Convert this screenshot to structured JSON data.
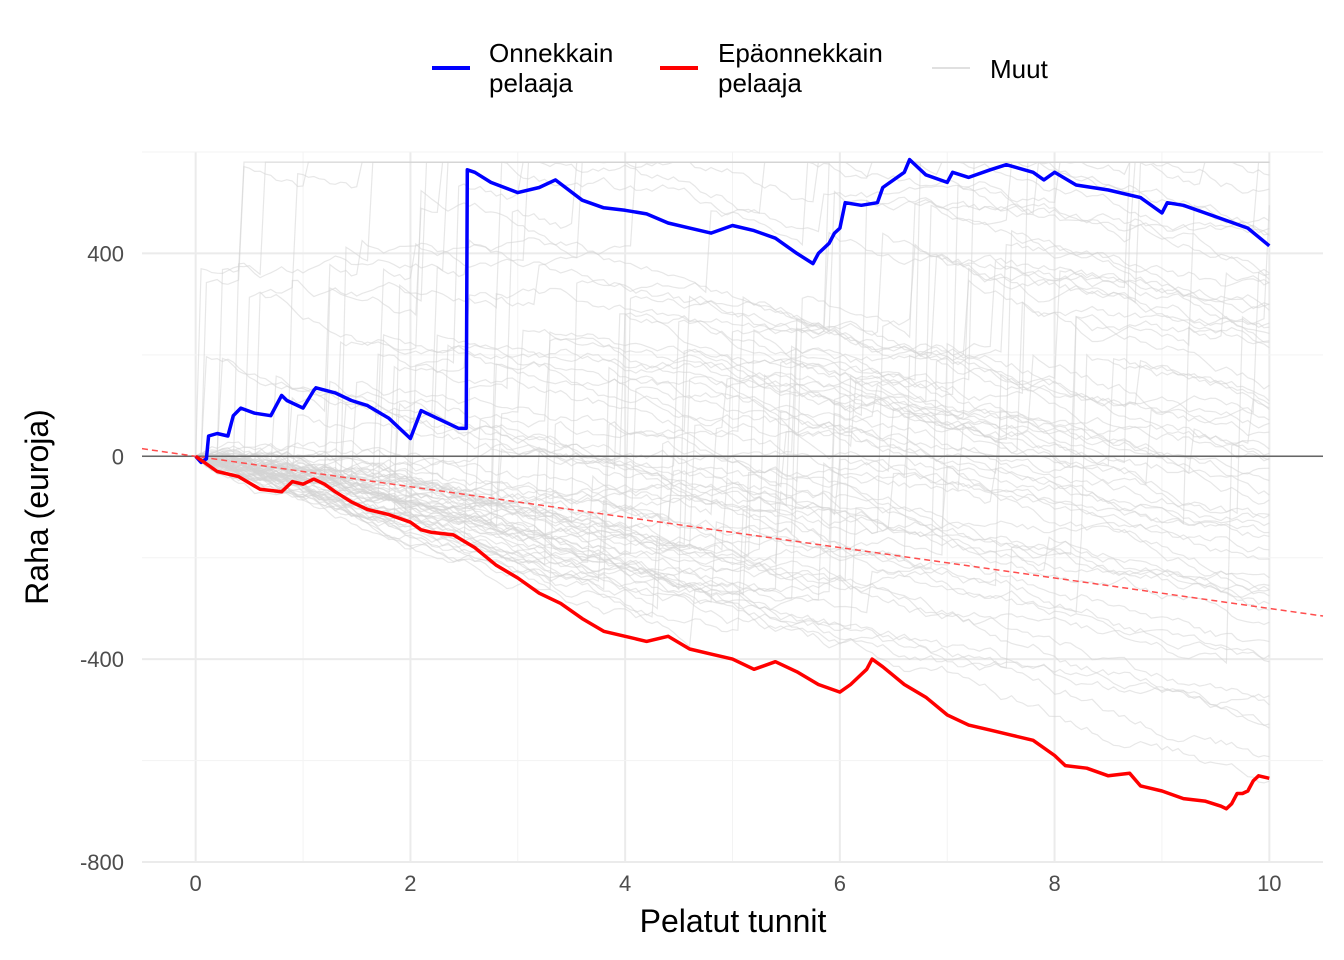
{
  "chart_data": {
    "type": "line",
    "title": "",
    "xlabel": "Pelatut tunnit",
    "ylabel": "Raha (euroja)",
    "xlim": [
      -0.5,
      10.5
    ],
    "ylim": [
      -800,
      600
    ],
    "x_ticks": [
      0,
      2,
      4,
      6,
      8,
      10
    ],
    "y_ticks": [
      -800,
      -400,
      0,
      400
    ],
    "grid": true,
    "legend_position": "top",
    "colors": {
      "lucky": "#0000ff",
      "unlucky": "#ff0000",
      "others": "#d3d3d3",
      "trend": "#ff4d4d",
      "zero_line": "#666666"
    },
    "reference_line_y": 0,
    "expected_trend": {
      "x": [
        -0.5,
        10.5
      ],
      "y": [
        15,
        -315
      ]
    },
    "series": [
      {
        "name": "Onnekkain\npelaaja",
        "role": "lucky",
        "x": [
          0,
          0.05,
          0.1,
          0.12,
          0.2,
          0.3,
          0.35,
          0.42,
          0.55,
          0.7,
          0.8,
          0.85,
          1.0,
          1.1,
          1.12,
          1.3,
          1.45,
          1.6,
          1.8,
          2.0,
          2.1,
          2.15,
          2.3,
          2.45,
          2.52,
          2.53,
          2.6,
          2.75,
          3.0,
          3.2,
          3.35,
          3.6,
          3.8,
          4.0,
          4.2,
          4.4,
          4.6,
          4.8,
          5.0,
          5.2,
          5.4,
          5.6,
          5.75,
          5.8,
          5.9,
          5.95,
          6.0,
          6.05,
          6.2,
          6.35,
          6.4,
          6.6,
          6.65,
          6.8,
          7.0,
          7.05,
          7.2,
          7.4,
          7.55,
          7.8,
          7.9,
          8.0,
          8.2,
          8.5,
          8.8,
          9.0,
          9.05,
          9.2,
          9.4,
          9.6,
          9.8,
          10.0
        ],
        "y": [
          0,
          -12,
          -5,
          40,
          45,
          40,
          80,
          95,
          85,
          80,
          120,
          110,
          95,
          130,
          135,
          125,
          110,
          100,
          75,
          35,
          90,
          85,
          70,
          55,
          55,
          565,
          560,
          540,
          520,
          530,
          545,
          505,
          490,
          485,
          478,
          460,
          450,
          440,
          455,
          445,
          430,
          400,
          380,
          400,
          420,
          440,
          450,
          500,
          495,
          500,
          530,
          560,
          585,
          555,
          540,
          560,
          550,
          565,
          575,
          560,
          545,
          560,
          535,
          525,
          510,
          480,
          500,
          495,
          480,
          465,
          450,
          415
        ]
      },
      {
        "name": "Epäonnekkain\npelaaja",
        "role": "unlucky",
        "x": [
          0,
          0.2,
          0.4,
          0.6,
          0.8,
          0.9,
          1.0,
          1.1,
          1.2,
          1.3,
          1.45,
          1.6,
          1.8,
          2.0,
          2.1,
          2.2,
          2.4,
          2.6,
          2.8,
          3.0,
          3.2,
          3.4,
          3.6,
          3.8,
          4.0,
          4.2,
          4.4,
          4.6,
          4.8,
          5.0,
          5.2,
          5.4,
          5.6,
          5.8,
          6.0,
          6.1,
          6.2,
          6.25,
          6.3,
          6.4,
          6.6,
          6.8,
          7.0,
          7.2,
          7.4,
          7.6,
          7.8,
          8.0,
          8.1,
          8.3,
          8.5,
          8.7,
          8.8,
          9.0,
          9.2,
          9.4,
          9.55,
          9.6,
          9.65,
          9.7,
          9.75,
          9.8,
          9.85,
          9.9,
          10.0
        ],
        "y": [
          0,
          -30,
          -40,
          -65,
          -70,
          -50,
          -55,
          -45,
          -55,
          -70,
          -90,
          -105,
          -115,
          -130,
          -145,
          -150,
          -155,
          -180,
          -215,
          -240,
          -270,
          -290,
          -320,
          -345,
          -355,
          -365,
          -355,
          -380,
          -390,
          -400,
          -420,
          -405,
          -425,
          -450,
          -465,
          -450,
          -430,
          -420,
          -400,
          -415,
          -450,
          -475,
          -510,
          -530,
          -540,
          -550,
          -560,
          -590,
          -610,
          -615,
          -630,
          -625,
          -650,
          -660,
          -675,
          -680,
          -690,
          -695,
          -685,
          -665,
          -665,
          -660,
          -640,
          -630,
          -635
        ]
      },
      {
        "name": "Muut",
        "role": "others",
        "representative": true
      }
    ]
  }
}
